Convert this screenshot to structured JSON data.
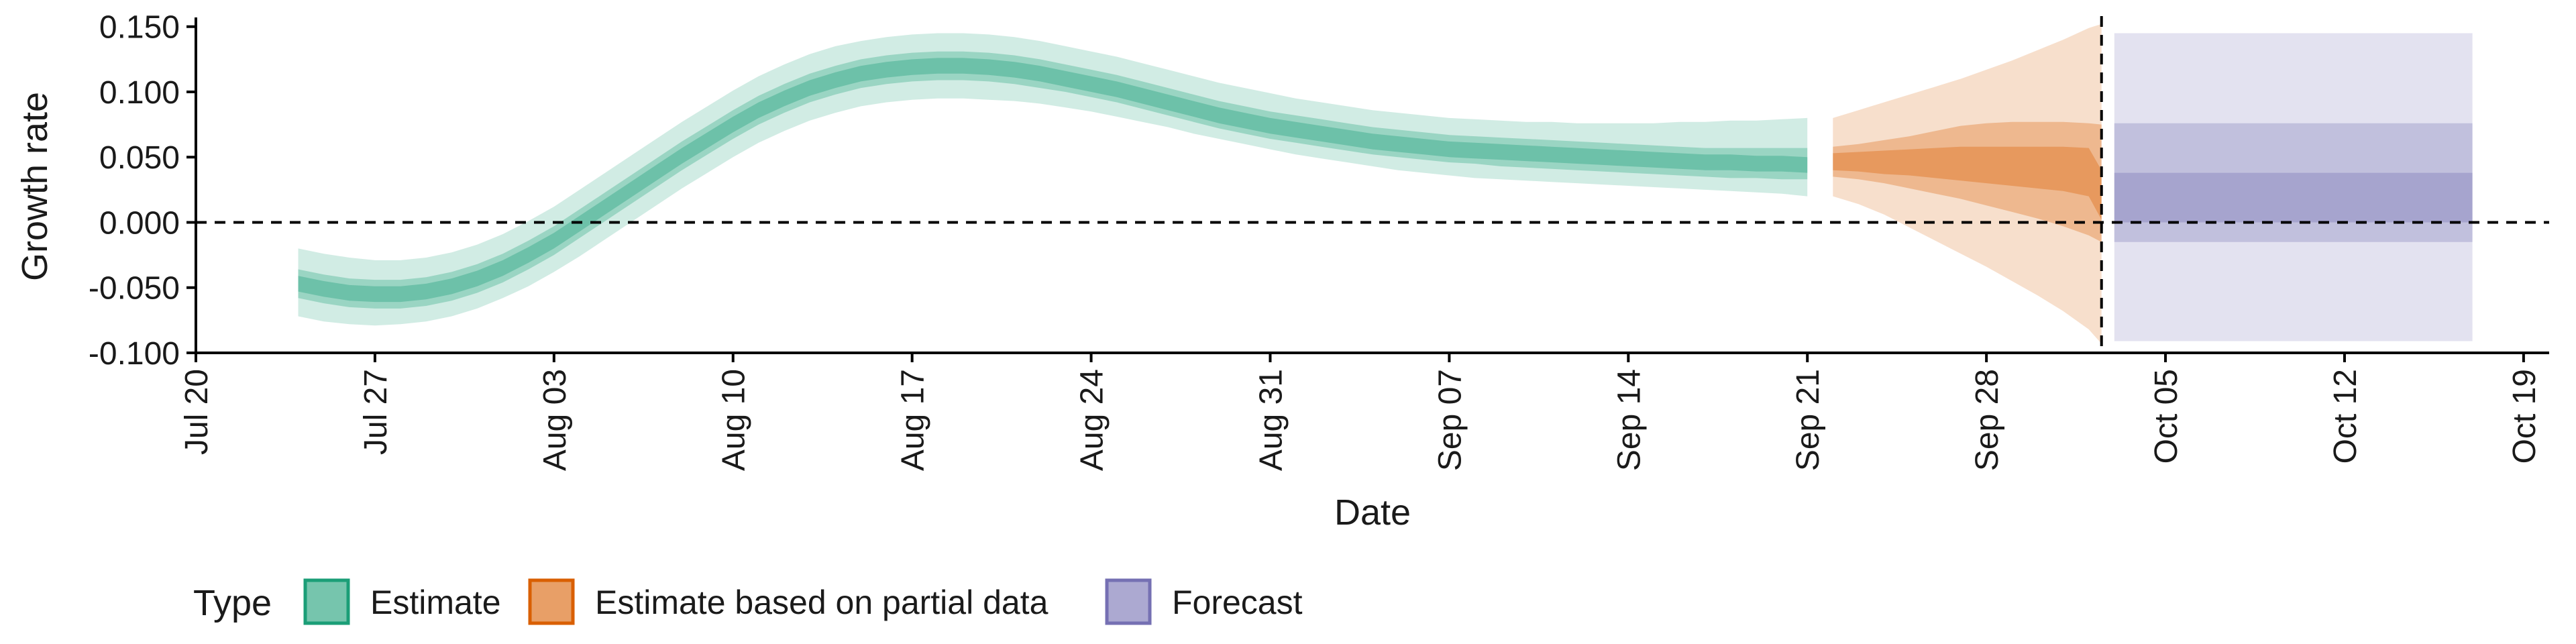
{
  "chart_data": {
    "type": "area",
    "xlabel": "Date",
    "ylabel": "Growth rate",
    "x_ticks": [
      "Jul 20",
      "Jul 27",
      "Aug 03",
      "Aug 10",
      "Aug 17",
      "Aug 24",
      "Aug 31",
      "Sep 07",
      "Sep 14",
      "Sep 21",
      "Sep 28",
      "Oct 05",
      "Oct 12",
      "Oct 19"
    ],
    "y_ticks": [
      "0.150",
      "0.100",
      "0.050",
      "0.000",
      "-0.050",
      "-0.100"
    ],
    "xlim": [
      0,
      92
    ],
    "ylim": [
      -0.1,
      0.155
    ],
    "x_unit": "days from Jul 20",
    "reference_lines": {
      "horizontal_y": 0.0,
      "vertical_x": 74.5
    },
    "legend": {
      "title": "Type",
      "position": "bottom",
      "items": [
        {
          "label": "Estimate",
          "color": "#1b9e77"
        },
        {
          "label": "Estimate based on partial data",
          "color": "#d95f02"
        },
        {
          "label": "Forecast",
          "color": "#7570b3"
        }
      ]
    },
    "series": [
      {
        "name": "Estimate",
        "color": "#1b9e77",
        "x": [
          4,
          5,
          6,
          7,
          8,
          9,
          10,
          11,
          12,
          13,
          14,
          15,
          16,
          17,
          18,
          19,
          20,
          21,
          22,
          23,
          24,
          25,
          26,
          27,
          28,
          29,
          30,
          31,
          32,
          33,
          34,
          35,
          36,
          37,
          38,
          39,
          40,
          41,
          42,
          43,
          44,
          45,
          46,
          47,
          48,
          49,
          50,
          51,
          52,
          53,
          54,
          55,
          56,
          57,
          58,
          59,
          60,
          61,
          62,
          63
        ],
        "lower90": [
          -0.072,
          -0.076,
          -0.078,
          -0.079,
          -0.078,
          -0.076,
          -0.072,
          -0.066,
          -0.058,
          -0.049,
          -0.038,
          -0.026,
          -0.013,
          0.0,
          0.013,
          0.026,
          0.038,
          0.05,
          0.061,
          0.07,
          0.078,
          0.084,
          0.089,
          0.092,
          0.094,
          0.095,
          0.095,
          0.094,
          0.093,
          0.091,
          0.088,
          0.085,
          0.081,
          0.077,
          0.073,
          0.068,
          0.064,
          0.06,
          0.056,
          0.052,
          0.049,
          0.046,
          0.043,
          0.04,
          0.038,
          0.036,
          0.034,
          0.033,
          0.032,
          0.031,
          0.03,
          0.029,
          0.028,
          0.027,
          0.026,
          0.025,
          0.024,
          0.023,
          0.022,
          0.02
        ],
        "lower50": [
          -0.058,
          -0.062,
          -0.065,
          -0.066,
          -0.066,
          -0.064,
          -0.06,
          -0.054,
          -0.046,
          -0.036,
          -0.025,
          -0.012,
          0.001,
          0.014,
          0.027,
          0.04,
          0.052,
          0.064,
          0.075,
          0.084,
          0.092,
          0.098,
          0.103,
          0.106,
          0.108,
          0.109,
          0.109,
          0.108,
          0.106,
          0.103,
          0.1,
          0.096,
          0.092,
          0.087,
          0.082,
          0.077,
          0.072,
          0.068,
          0.064,
          0.061,
          0.058,
          0.055,
          0.052,
          0.05,
          0.048,
          0.046,
          0.045,
          0.043,
          0.042,
          0.041,
          0.04,
          0.039,
          0.038,
          0.037,
          0.036,
          0.035,
          0.034,
          0.034,
          0.033,
          0.033
        ],
        "lower20": [
          -0.053,
          -0.057,
          -0.06,
          -0.061,
          -0.061,
          -0.059,
          -0.055,
          -0.049,
          -0.041,
          -0.031,
          -0.02,
          -0.007,
          0.006,
          0.019,
          0.032,
          0.045,
          0.057,
          0.069,
          0.08,
          0.089,
          0.097,
          0.103,
          0.108,
          0.111,
          0.113,
          0.114,
          0.114,
          0.113,
          0.111,
          0.108,
          0.104,
          0.1,
          0.096,
          0.091,
          0.086,
          0.081,
          0.076,
          0.072,
          0.068,
          0.065,
          0.062,
          0.059,
          0.056,
          0.054,
          0.052,
          0.05,
          0.049,
          0.048,
          0.047,
          0.046,
          0.045,
          0.044,
          0.043,
          0.042,
          0.041,
          0.04,
          0.04,
          0.039,
          0.039,
          0.038
        ],
        "upper20": [
          -0.041,
          -0.045,
          -0.048,
          -0.049,
          -0.049,
          -0.047,
          -0.043,
          -0.037,
          -0.029,
          -0.019,
          -0.008,
          0.005,
          0.018,
          0.031,
          0.044,
          0.057,
          0.069,
          0.081,
          0.092,
          0.101,
          0.109,
          0.115,
          0.12,
          0.123,
          0.125,
          0.126,
          0.126,
          0.125,
          0.123,
          0.12,
          0.116,
          0.112,
          0.108,
          0.103,
          0.098,
          0.093,
          0.088,
          0.084,
          0.08,
          0.077,
          0.074,
          0.071,
          0.068,
          0.066,
          0.064,
          0.062,
          0.061,
          0.06,
          0.059,
          0.058,
          0.057,
          0.056,
          0.055,
          0.054,
          0.053,
          0.052,
          0.052,
          0.051,
          0.051,
          0.05
        ],
        "upper50": [
          -0.036,
          -0.04,
          -0.043,
          -0.044,
          -0.044,
          -0.042,
          -0.038,
          -0.032,
          -0.024,
          -0.014,
          -0.003,
          0.01,
          0.023,
          0.036,
          0.049,
          0.062,
          0.074,
          0.086,
          0.097,
          0.106,
          0.114,
          0.12,
          0.125,
          0.128,
          0.13,
          0.131,
          0.131,
          0.13,
          0.128,
          0.125,
          0.121,
          0.117,
          0.113,
          0.108,
          0.103,
          0.098,
          0.093,
          0.089,
          0.085,
          0.082,
          0.079,
          0.076,
          0.073,
          0.071,
          0.069,
          0.067,
          0.066,
          0.065,
          0.064,
          0.063,
          0.062,
          0.061,
          0.06,
          0.059,
          0.058,
          0.057,
          0.057,
          0.057,
          0.057,
          0.057
        ],
        "upper90": [
          -0.02,
          -0.024,
          -0.027,
          -0.029,
          -0.029,
          -0.027,
          -0.023,
          -0.017,
          -0.009,
          0.001,
          0.012,
          0.025,
          0.038,
          0.051,
          0.064,
          0.077,
          0.089,
          0.101,
          0.112,
          0.121,
          0.129,
          0.135,
          0.139,
          0.142,
          0.144,
          0.145,
          0.145,
          0.144,
          0.142,
          0.139,
          0.135,
          0.131,
          0.127,
          0.122,
          0.117,
          0.112,
          0.107,
          0.103,
          0.099,
          0.095,
          0.092,
          0.089,
          0.086,
          0.084,
          0.082,
          0.08,
          0.079,
          0.078,
          0.077,
          0.077,
          0.076,
          0.076,
          0.076,
          0.076,
          0.077,
          0.077,
          0.078,
          0.078,
          0.079,
          0.08
        ]
      },
      {
        "name": "Estimate based on partial data",
        "color": "#d95f02",
        "x": [
          64,
          65,
          66,
          67,
          68,
          69,
          70,
          71,
          72,
          73,
          74,
          74.5
        ],
        "lower90": [
          0.02,
          0.014,
          0.006,
          -0.004,
          -0.014,
          -0.024,
          -0.034,
          -0.045,
          -0.056,
          -0.068,
          -0.082,
          -0.093
        ],
        "lower50": [
          0.035,
          0.033,
          0.03,
          0.026,
          0.022,
          0.018,
          0.013,
          0.008,
          0.003,
          -0.003,
          -0.01,
          -0.015
        ],
        "lower20": [
          0.04,
          0.039,
          0.037,
          0.036,
          0.034,
          0.032,
          0.03,
          0.028,
          0.026,
          0.024,
          0.02,
          0.002
        ],
        "upper20": [
          0.053,
          0.054,
          0.055,
          0.056,
          0.057,
          0.058,
          0.058,
          0.058,
          0.058,
          0.058,
          0.057,
          0.04
        ],
        "upper50": [
          0.058,
          0.06,
          0.063,
          0.066,
          0.07,
          0.074,
          0.076,
          0.077,
          0.077,
          0.077,
          0.076,
          0.075
        ],
        "upper90": [
          0.08,
          0.086,
          0.092,
          0.098,
          0.104,
          0.11,
          0.117,
          0.124,
          0.132,
          0.14,
          0.149,
          0.152
        ]
      },
      {
        "name": "Forecast",
        "color": "#7570b3",
        "x": [
          75,
          89
        ],
        "lower90": [
          -0.091,
          -0.091
        ],
        "lower50": [
          -0.015,
          -0.015
        ],
        "lower20": [
          0.0,
          0.0
        ],
        "upper20": [
          0.038,
          0.038
        ],
        "upper50": [
          0.076,
          0.076
        ],
        "upper90": [
          0.145,
          0.145
        ]
      }
    ]
  }
}
